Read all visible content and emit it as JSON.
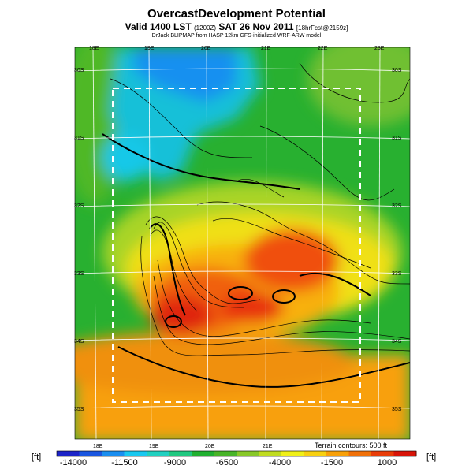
{
  "title": "OvercastDevelopment Potential",
  "subtitle_main": "Valid 1400 LST",
  "subtitle_time_small": "(1200Z)",
  "subtitle_date": "SAT 26 Nov 2011",
  "subtitle_fcst_small": "[18hrFcst@2159z]",
  "credits": "DrJack BLIPMAP from HASP 12km GFS-initialized WRF-ARW model",
  "terrain_note": "Terrain contours: 500 ft",
  "unit_left": "[ft]",
  "unit_right": "[ft]",
  "lon_labels_top": [
    "18E",
    "19E",
    "20E",
    "21E",
    "22E",
    "23E"
  ],
  "lon_labels_bottom": [
    "18E",
    "19E",
    "20E",
    "21E"
  ],
  "lat_labels_left": [
    "30S",
    "31S",
    "32S",
    "33S",
    "34S",
    "35S"
  ],
  "lat_labels_right": [
    "30S",
    "31S",
    "32S",
    "33S",
    "34S",
    "35S"
  ],
  "colorbar": {
    "labels": [
      "-14000",
      "-11500",
      "-9000",
      "-6500",
      "-4000",
      "-1500",
      "1000"
    ],
    "colors": [
      "#1c24c8",
      "#1a56e0",
      "#1a8ef0",
      "#18c8f0",
      "#20d0c0",
      "#20c880",
      "#20b030",
      "#48b428",
      "#88c828",
      "#c0dc20",
      "#f0f018",
      "#f8d010",
      "#f8a008",
      "#f07008",
      "#e83c08",
      "#d81408"
    ]
  }
}
